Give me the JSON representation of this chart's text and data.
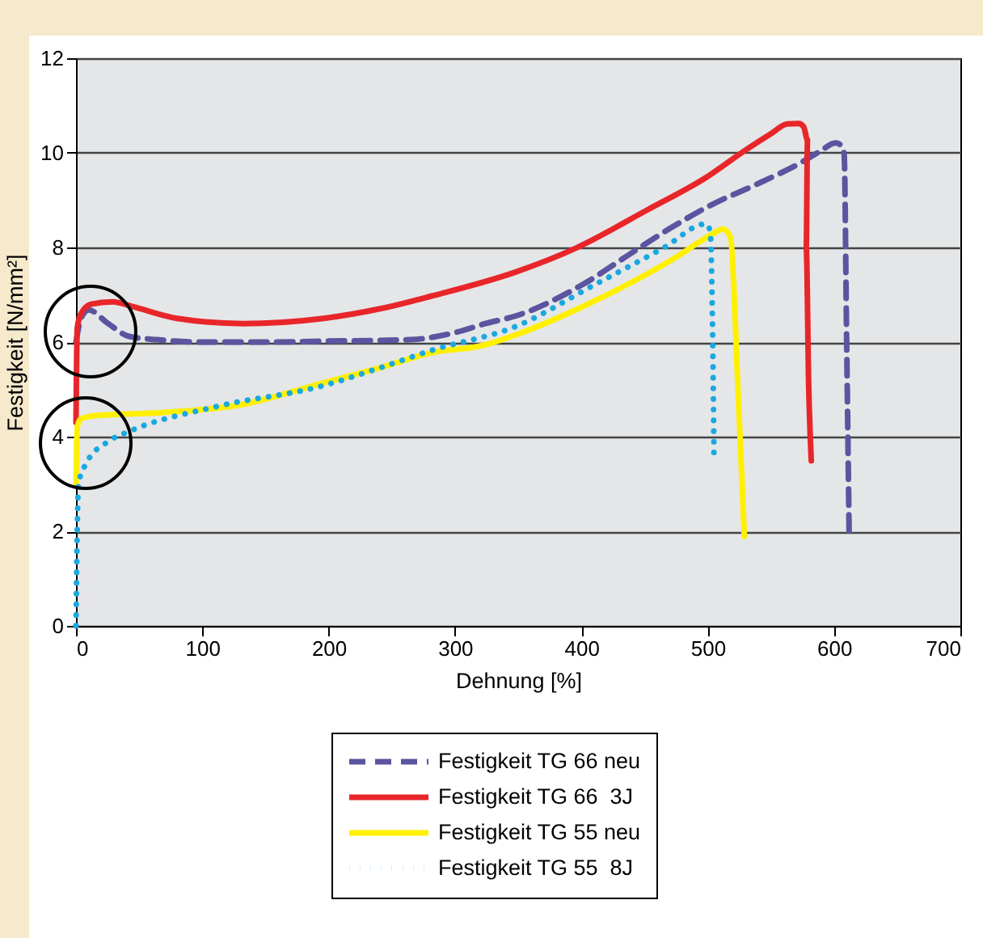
{
  "chart_data": {
    "type": "line",
    "xlabel": "Dehnung [%]",
    "ylabel": "Festigkeit [N/mm²]",
    "xlim": [
      0,
      700
    ],
    "xticks": [
      0,
      100,
      200,
      300,
      400,
      500,
      600,
      700
    ],
    "ylim": [
      0,
      12
    ],
    "yticks": [
      0,
      2,
      4,
      6,
      8,
      10,
      12
    ],
    "grid": "y",
    "legend": "bottom",
    "series": [
      {
        "name": "Festigkeit TG 66 neu",
        "color": "#5b55a0",
        "line_style": "dashed",
        "x": [
          0,
          4,
          10,
          25,
          42,
          64,
          100,
          153,
          200,
          264,
          300,
          324,
          349,
          400,
          439,
          470,
          503,
          540,
          575,
          590,
          601,
          606,
          608,
          610,
          612
        ],
        "values": [
          6.0,
          6.5,
          6.68,
          6.4,
          6.12,
          6.05,
          6.0,
          6.0,
          6.02,
          6.05,
          6.2,
          6.39,
          6.56,
          7.2,
          7.87,
          8.4,
          8.9,
          9.35,
          9.81,
          10.05,
          10.21,
          10.15,
          9.98,
          6.0,
          1.85
        ]
      },
      {
        "name": "Festigkeit TG 66  3J",
        "color": "#e8262a",
        "line_style": "solid",
        "x": [
          0,
          1,
          4,
          12,
          29,
          46,
          80,
          132,
          196,
          240,
          281,
          349,
          396,
          452,
          500,
          529,
          550,
          563,
          572,
          576,
          579,
          578,
          580,
          582
        ],
        "values": [
          4.3,
          6.3,
          6.6,
          6.8,
          6.85,
          6.74,
          6.5,
          6.39,
          6.5,
          6.7,
          6.97,
          7.49,
          7.99,
          8.79,
          9.5,
          10.04,
          10.4,
          10.61,
          10.62,
          10.55,
          10.27,
          7.99,
          5.0,
          3.49
        ]
      },
      {
        "name": "Festigkeit TG 55 neu",
        "color": "#fff000",
        "line_style": "solid",
        "x": [
          0,
          1,
          4,
          17,
          68,
          132,
          196,
          240,
          281,
          324,
          349,
          409,
          473,
          503,
          512,
          518,
          524,
          529
        ],
        "values": [
          3.0,
          4.2,
          4.38,
          4.45,
          4.51,
          4.68,
          5.14,
          5.45,
          5.77,
          5.94,
          6.16,
          6.85,
          7.76,
          8.27,
          8.39,
          8.22,
          5.0,
          1.89
        ]
      },
      {
        "name": "Festigkeit TG 55  8J",
        "color": "#1aa8e0",
        "line_style": "dotted",
        "x": [
          0,
          1,
          2,
          8,
          25,
          42,
          110,
          196,
          240,
          281,
          349,
          409,
          465,
          499,
          502,
          504,
          505
        ],
        "values": [
          0,
          2.0,
          3.0,
          3.43,
          3.89,
          4.11,
          4.63,
          5.08,
          5.45,
          5.82,
          6.34,
          7.19,
          7.99,
          8.5,
          8.33,
          6.0,
          3.6
        ]
      }
    ]
  }
}
